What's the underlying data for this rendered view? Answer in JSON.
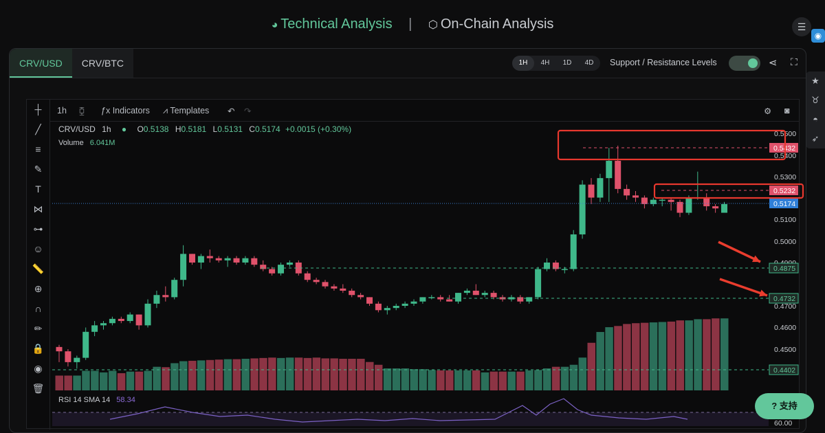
{
  "nav": {
    "technical": "Technical Analysis",
    "separator": "|",
    "onchain": "On-Chain Analysis"
  },
  "tabs": [
    "CRV/USD",
    "CRV/BTC"
  ],
  "timeframes": [
    "1H",
    "4H",
    "1D",
    "4D"
  ],
  "active_timeframe": "1H",
  "sr_label": "Support / Resistance Levels",
  "toolbar": {
    "interval": "1h",
    "indicators": "Indicators",
    "templates": "Templates"
  },
  "legend": {
    "symbol": "CRV/USD",
    "interval": "1h",
    "o_label": "O",
    "o": "0.5138",
    "h_label": "H",
    "h": "0.5181",
    "l_label": "L",
    "l": "0.5131",
    "c_label": "C",
    "c": "0.5174",
    "change": "+0.0015 (+0.30%)"
  },
  "volume": {
    "label": "Volume",
    "value": "6.041M"
  },
  "rsi": {
    "label": "RSI 14 SMA 14",
    "value": "58.34"
  },
  "help_label": "支持",
  "colors": {
    "up": "#3fb88a",
    "down": "#e0526b",
    "accent": "#62c79b"
  },
  "chart_data": {
    "type": "candlestick",
    "price_axis": {
      "ticks": [
        "0.5500",
        "0.5400",
        "0.5300",
        "0.5100",
        "0.5000",
        "0.4900",
        "0.4700",
        "0.4600",
        "0.4500"
      ],
      "ylim": [
        0.44,
        0.555
      ]
    },
    "price_labels": [
      {
        "value": "0.5432",
        "kind": "resistance"
      },
      {
        "value": "0.5232",
        "kind": "resistance"
      },
      {
        "value": "0.5174",
        "kind": "current"
      },
      {
        "value": "0.4875",
        "kind": "support"
      },
      {
        "value": "0.4732",
        "kind": "support"
      },
      {
        "value": "0.4402",
        "kind": "support"
      }
    ],
    "rsi_level": "60.00",
    "candles": [
      [
        0.451,
        0.452,
        0.444,
        0.449
      ],
      [
        0.449,
        0.45,
        0.442,
        0.444
      ],
      [
        0.444,
        0.447,
        0.441,
        0.446
      ],
      [
        0.446,
        0.46,
        0.445,
        0.458
      ],
      [
        0.458,
        0.463,
        0.456,
        0.461
      ],
      [
        0.461,
        0.463,
        0.459,
        0.462
      ],
      [
        0.462,
        0.465,
        0.461,
        0.464
      ],
      [
        0.464,
        0.465,
        0.462,
        0.463
      ],
      [
        0.463,
        0.467,
        0.462,
        0.466
      ],
      [
        0.466,
        0.466,
        0.459,
        0.461
      ],
      [
        0.461,
        0.473,
        0.46,
        0.471
      ],
      [
        0.471,
        0.477,
        0.469,
        0.475
      ],
      [
        0.475,
        0.479,
        0.472,
        0.474
      ],
      [
        0.474,
        0.483,
        0.473,
        0.482
      ],
      [
        0.482,
        0.498,
        0.479,
        0.494
      ],
      [
        0.494,
        0.494,
        0.489,
        0.49
      ],
      [
        0.49,
        0.494,
        0.487,
        0.493
      ],
      [
        0.493,
        0.496,
        0.49,
        0.492
      ],
      [
        0.492,
        0.493,
        0.49,
        0.491
      ],
      [
        0.491,
        0.493,
        0.488,
        0.492
      ],
      [
        0.492,
        0.493,
        0.489,
        0.49
      ],
      [
        0.49,
        0.493,
        0.489,
        0.492
      ],
      [
        0.492,
        0.493,
        0.488,
        0.489
      ],
      [
        0.489,
        0.491,
        0.486,
        0.487
      ],
      [
        0.487,
        0.488,
        0.484,
        0.485
      ],
      [
        0.485,
        0.49,
        0.484,
        0.489
      ],
      [
        0.489,
        0.491,
        0.488,
        0.49
      ],
      [
        0.49,
        0.491,
        0.484,
        0.485
      ],
      [
        0.485,
        0.486,
        0.481,
        0.482
      ],
      [
        0.482,
        0.483,
        0.48,
        0.481
      ],
      [
        0.481,
        0.482,
        0.478,
        0.479
      ],
      [
        0.479,
        0.48,
        0.477,
        0.478
      ],
      [
        0.478,
        0.48,
        0.476,
        0.477
      ],
      [
        0.477,
        0.478,
        0.474,
        0.475
      ],
      [
        0.475,
        0.476,
        0.473,
        0.474
      ],
      [
        0.474,
        0.474,
        0.47,
        0.471
      ],
      [
        0.471,
        0.472,
        0.467,
        0.468
      ],
      [
        0.468,
        0.47,
        0.466,
        0.469
      ],
      [
        0.469,
        0.471,
        0.468,
        0.47
      ],
      [
        0.47,
        0.472,
        0.469,
        0.471
      ],
      [
        0.471,
        0.473,
        0.47,
        0.472
      ],
      [
        0.472,
        0.474,
        0.471,
        0.474
      ],
      [
        0.474,
        0.475,
        0.473,
        0.474
      ],
      [
        0.474,
        0.475,
        0.472,
        0.473
      ],
      [
        0.473,
        0.475,
        0.472,
        0.472
      ],
      [
        0.472,
        0.476,
        0.471,
        0.476
      ],
      [
        0.476,
        0.478,
        0.475,
        0.477
      ],
      [
        0.477,
        0.48,
        0.475,
        0.475
      ],
      [
        0.475,
        0.477,
        0.474,
        0.476
      ],
      [
        0.476,
        0.477,
        0.473,
        0.474
      ],
      [
        0.474,
        0.475,
        0.472,
        0.473
      ],
      [
        0.473,
        0.475,
        0.472,
        0.474
      ],
      [
        0.474,
        0.475,
        0.471,
        0.472
      ],
      [
        0.472,
        0.474,
        0.471,
        0.474
      ],
      [
        0.474,
        0.488,
        0.473,
        0.487
      ],
      [
        0.487,
        0.492,
        0.486,
        0.49
      ],
      [
        0.49,
        0.491,
        0.486,
        0.487
      ],
      [
        0.487,
        0.488,
        0.485,
        0.487
      ],
      [
        0.487,
        0.505,
        0.486,
        0.503
      ],
      [
        0.503,
        0.528,
        0.501,
        0.526
      ],
      [
        0.526,
        0.529,
        0.517,
        0.52
      ],
      [
        0.52,
        0.531,
        0.518,
        0.529
      ],
      [
        0.529,
        0.543,
        0.518,
        0.537
      ],
      [
        0.537,
        0.544,
        0.522,
        0.524
      ],
      [
        0.524,
        0.526,
        0.519,
        0.521
      ],
      [
        0.521,
        0.523,
        0.518,
        0.52
      ],
      [
        0.52,
        0.521,
        0.515,
        0.517
      ],
      [
        0.517,
        0.52,
        0.516,
        0.519
      ],
      [
        0.519,
        0.52,
        0.516,
        0.519
      ],
      [
        0.519,
        0.52,
        0.514,
        0.518
      ],
      [
        0.518,
        0.519,
        0.511,
        0.513
      ],
      [
        0.513,
        0.521,
        0.512,
        0.52
      ],
      [
        0.52,
        0.532,
        0.519,
        0.52
      ],
      [
        0.52,
        0.522,
        0.514,
        0.516
      ],
      [
        0.516,
        0.517,
        0.513,
        0.515
      ],
      [
        0.513,
        0.518,
        0.513,
        0.517
      ]
    ],
    "volume_ratios": [
      0.37,
      0.37,
      0.37,
      0.49,
      0.49,
      0.45,
      0.49,
      0.43,
      0.47,
      0.47,
      0.49,
      0.59,
      0.58,
      0.68,
      0.73,
      0.74,
      0.75,
      0.76,
      0.77,
      0.78,
      0.78,
      0.79,
      0.8,
      0.81,
      0.82,
      0.81,
      0.82,
      0.82,
      0.81,
      0.82,
      0.8,
      0.8,
      0.79,
      0.79,
      0.79,
      0.71,
      0.64,
      0.55,
      0.55,
      0.55,
      0.53,
      0.53,
      0.51,
      0.5,
      0.5,
      0.5,
      0.5,
      0.5,
      0.45,
      0.47,
      0.47,
      0.47,
      0.47,
      0.5,
      0.51,
      0.55,
      0.59,
      0.59,
      0.64,
      0.82,
      1.19,
      1.46,
      1.58,
      1.61,
      1.66,
      1.68,
      1.69,
      1.7,
      1.71,
      1.72,
      1.75,
      1.75,
      1.78,
      1.78,
      1.8,
      1.8
    ]
  }
}
